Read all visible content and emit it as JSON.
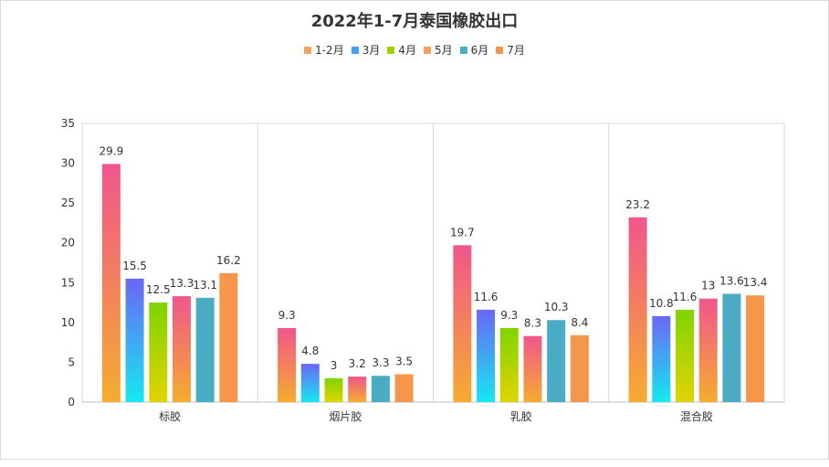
{
  "chart_data": {
    "type": "bar",
    "title": "2022年1-7月泰国橡胶出口",
    "categories": [
      "标胶",
      "烟片胶",
      "乳胶",
      "混合胶"
    ],
    "series": [
      {
        "name": "1-2月",
        "values": [
          29.9,
          9.3,
          19.7,
          23.2
        ],
        "gradient": [
          "#f0568c",
          "#f5ac2f"
        ],
        "legend_color": "#f5a05c"
      },
      {
        "name": "3月",
        "values": [
          15.5,
          4.8,
          11.6,
          10.8
        ],
        "gradient": [
          "#6a67f5",
          "#16e8f0"
        ],
        "legend_color": "#3d9cf5"
      },
      {
        "name": "4月",
        "values": [
          12.5,
          3,
          9.3,
          11.6
        ],
        "gradient": [
          "#7fd400",
          "#e0d400"
        ],
        "legend_color": "#9fd000"
      },
      {
        "name": "5月",
        "values": [
          13.3,
          3.2,
          8.3,
          13
        ],
        "gradient": [
          "#f0568c",
          "#f5ac2f"
        ],
        "legend_color": "#f5a05c"
      },
      {
        "name": "6月",
        "values": [
          13.1,
          3.3,
          10.3,
          13.6
        ],
        "gradient": [
          "#4aabc4",
          "#4aabc4"
        ],
        "legend_color": "#4aabc4"
      },
      {
        "name": "7月",
        "values": [
          16.2,
          3.5,
          8.4,
          13.4
        ],
        "gradient": [
          "#f5964a",
          "#f5964a"
        ],
        "legend_color": "#f5964a"
      }
    ],
    "yticks": [
      0,
      5,
      10,
      15,
      20,
      25,
      30,
      35
    ],
    "ylim": [
      0,
      35
    ],
    "xlabel": "",
    "ylabel": "",
    "grid": "vertical category separators",
    "legend": "top-center"
  }
}
